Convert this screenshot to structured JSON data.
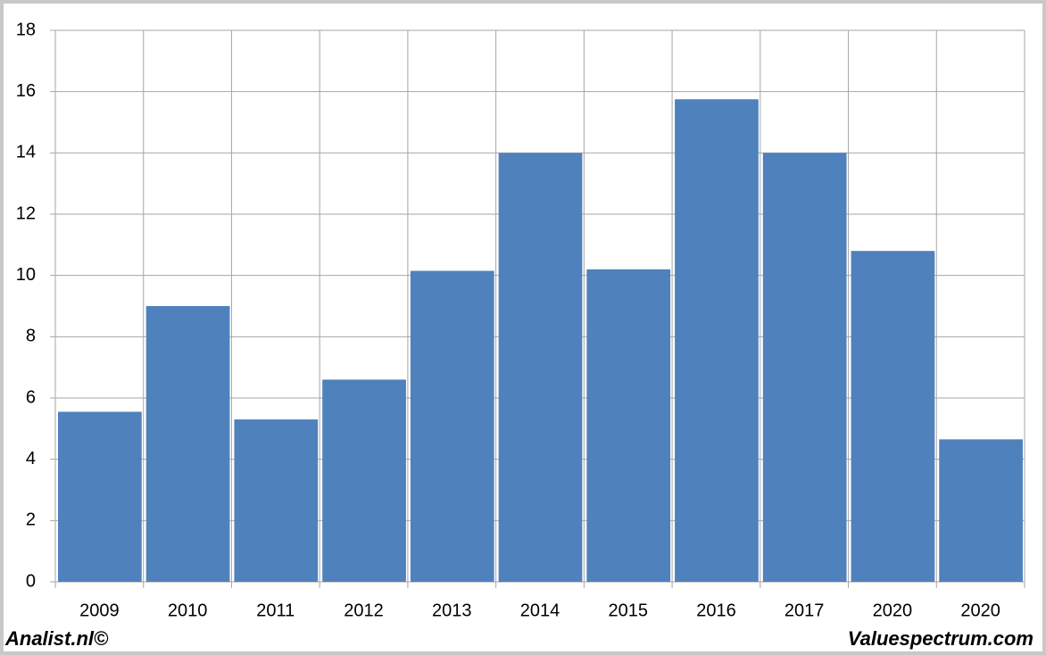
{
  "chart_data": {
    "type": "bar",
    "categories": [
      "2009",
      "2010",
      "2011",
      "2012",
      "2013",
      "2014",
      "2015",
      "2016",
      "2017",
      "2020",
      "2020"
    ],
    "values": [
      5.55,
      9.0,
      5.3,
      6.6,
      10.15,
      14.0,
      10.2,
      15.75,
      14.0,
      10.8,
      4.65
    ],
    "color": "#4f81bd",
    "ylim": [
      0,
      18
    ],
    "yticks": [
      0,
      2,
      4,
      6,
      8,
      10,
      12,
      14,
      16,
      18
    ],
    "grid": true
  },
  "footer": {
    "left": "Analist.nl©",
    "right": "Valuespectrum.com"
  }
}
